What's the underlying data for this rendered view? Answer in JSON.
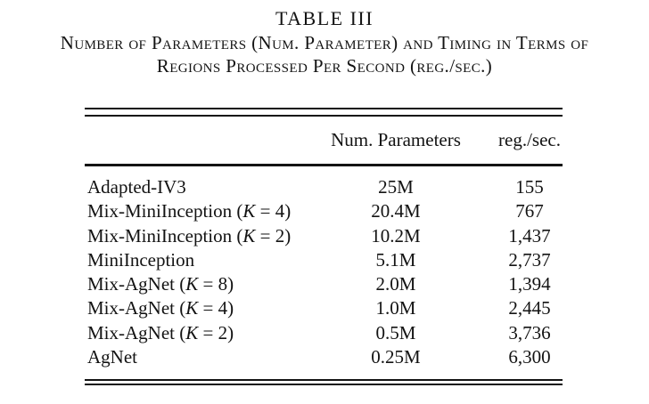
{
  "page": {
    "title": "TABLE III",
    "caption_line1": "Number of Parameters (Num. Parameter) and Timing in Terms of",
    "caption_line2": "Regions Processed Per Second (reg./sec.)"
  },
  "table": {
    "columns": {
      "model": "",
      "params": "Num. Parameters",
      "speed": "reg./sec."
    },
    "rows": [
      {
        "model": "Adapted-IV3",
        "params": "25M",
        "speed": "155"
      },
      {
        "model": "Mix-MiniInception (K = 4)",
        "params": "20.4M",
        "speed": "767"
      },
      {
        "model": "Mix-MiniInception (K = 2)",
        "params": "10.2M",
        "speed": "1,437"
      },
      {
        "model": "MiniInception",
        "params": "5.1M",
        "speed": "2,737"
      },
      {
        "model": "Mix-AgNet (K = 8)",
        "params": "2.0M",
        "speed": "1,394"
      },
      {
        "model": "Mix-AgNet (K = 4)",
        "params": "1.0M",
        "speed": "2,445"
      },
      {
        "model": "Mix-AgNet (K = 2)",
        "params": "0.5M",
        "speed": "3,736"
      },
      {
        "model": "AgNet",
        "params": "0.25M",
        "speed": "6,300"
      }
    ]
  }
}
